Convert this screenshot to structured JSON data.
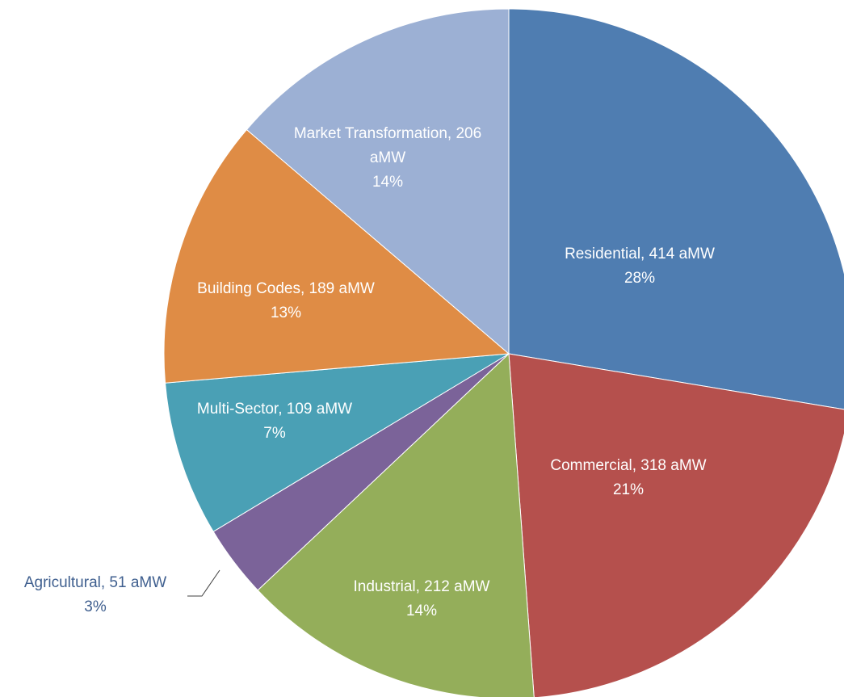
{
  "chart_data": {
    "type": "pie",
    "values": [
      414,
      318,
      212,
      51,
      109,
      189,
      206
    ],
    "value_labels": [
      "Residential, 414 aMW",
      "Commercial, 318 aMW",
      "Industrial, 212 aMW",
      "Agricultural, 51 aMW",
      "Multi-Sector, 109 aMW",
      "Building Codes, 189 aMW",
      "Market Transformation, 206 aMW"
    ],
    "percents": [
      28,
      21,
      14,
      3,
      7,
      13,
      14
    ],
    "percent_labels": [
      "28%",
      "21%",
      "14%",
      "3%",
      "7%",
      "13%",
      "14%"
    ],
    "colors": [
      "#4f7db1",
      "#b5504d",
      "#94ae5a",
      "#7b6399",
      "#4aa0b5",
      "#df8c45",
      "#9cb0d4"
    ]
  }
}
